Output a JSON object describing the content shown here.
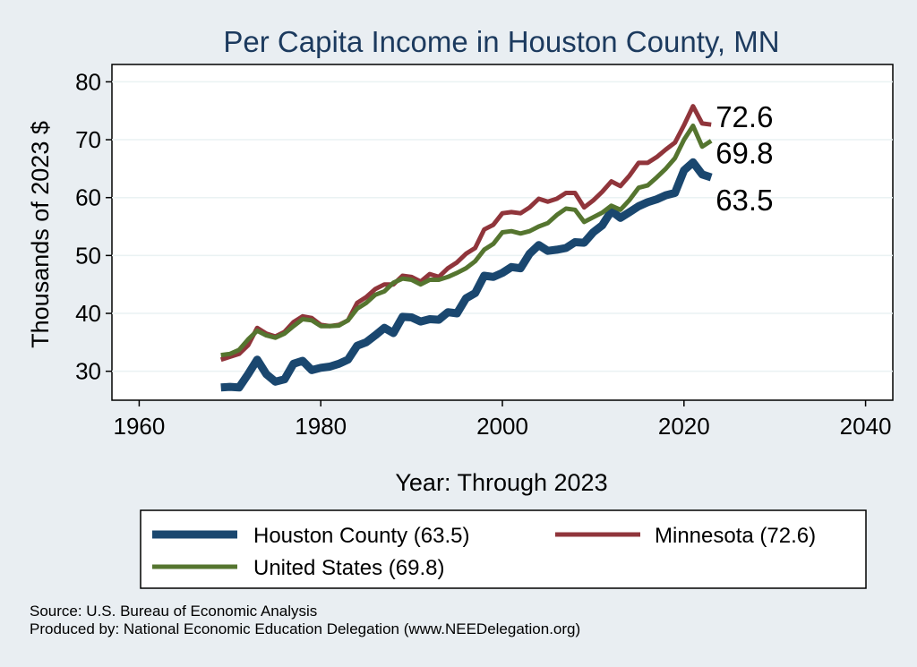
{
  "chart_data": {
    "type": "line",
    "title": "Per Capita Income in Houston County, MN",
    "xlabel": "Year: Through 2023",
    "ylabel": "Thousands of 2023 $",
    "xlim": [
      1957,
      2043
    ],
    "ylim": [
      25,
      83
    ],
    "x_ticks": [
      1960,
      1980,
      2000,
      2020,
      2040
    ],
    "y_ticks": [
      30,
      40,
      50,
      60,
      70,
      80
    ],
    "x_tick_labels": [
      "1960",
      "1980",
      "2000",
      "2020",
      "2040"
    ],
    "y_tick_labels": [
      "30",
      "40",
      "50",
      "60",
      "70",
      "80"
    ],
    "end_labels": [
      "72.6",
      "69.8",
      "63.5"
    ],
    "x": [
      1969,
      1970,
      1971,
      1972,
      1973,
      1974,
      1975,
      1976,
      1977,
      1978,
      1979,
      1980,
      1981,
      1982,
      1983,
      1984,
      1985,
      1986,
      1987,
      1988,
      1989,
      1990,
      1991,
      1992,
      1993,
      1994,
      1995,
      1996,
      1997,
      1998,
      1999,
      2000,
      2001,
      2002,
      2003,
      2004,
      2005,
      2006,
      2007,
      2008,
      2009,
      2010,
      2011,
      2012,
      2013,
      2014,
      2015,
      2016,
      2017,
      2018,
      2019,
      2020,
      2021,
      2022,
      2023
    ],
    "series": [
      {
        "name": "Houston County",
        "legend_label": "Houston County (63.5)",
        "color": "#1a476f",
        "end_value": "63.5",
        "values": [
          27.2,
          27.3,
          27.2,
          29.5,
          32.0,
          29.5,
          28.2,
          28.6,
          31.3,
          31.8,
          30.2,
          30.6,
          30.8,
          31.3,
          32.0,
          34.4,
          35.0,
          36.2,
          37.5,
          36.6,
          39.4,
          39.3,
          38.6,
          39.0,
          38.9,
          40.2,
          40.0,
          42.6,
          43.5,
          46.5,
          46.3,
          47.0,
          48.0,
          47.8,
          50.3,
          51.8,
          50.8,
          51.0,
          51.3,
          52.3,
          52.2,
          54.0,
          55.2,
          57.7,
          56.5,
          57.5,
          58.5,
          59.2,
          59.7,
          60.4,
          60.8,
          64.7,
          66.1,
          64.0,
          63.5
        ]
      },
      {
        "name": "Minnesota",
        "legend_label": "Minnesota (72.6)",
        "color": "#90353b",
        "end_value": "72.6",
        "values": [
          32.0,
          32.5,
          33.0,
          34.5,
          37.5,
          36.5,
          36.0,
          36.8,
          38.5,
          39.5,
          39.2,
          38.0,
          37.8,
          38.0,
          38.8,
          41.8,
          42.8,
          44.2,
          45.0,
          45.0,
          46.5,
          46.3,
          45.5,
          46.8,
          46.3,
          47.8,
          48.8,
          50.3,
          51.3,
          54.5,
          55.3,
          57.3,
          57.5,
          57.3,
          58.3,
          59.8,
          59.3,
          59.8,
          60.8,
          60.8,
          58.3,
          59.5,
          61.0,
          62.8,
          62.0,
          63.8,
          66.0,
          66.0,
          67.0,
          68.3,
          69.5,
          72.5,
          75.8,
          72.8,
          72.6
        ]
      },
      {
        "name": "United States",
        "legend_label": "United States (69.8)",
        "color": "#55752f",
        "end_value": "69.8",
        "values": [
          32.8,
          33.0,
          33.7,
          35.5,
          37.0,
          36.2,
          35.8,
          36.5,
          37.8,
          39.0,
          38.8,
          37.8,
          37.8,
          37.9,
          38.8,
          40.8,
          41.8,
          43.2,
          43.8,
          45.3,
          46.0,
          45.8,
          45.0,
          45.8,
          45.8,
          46.3,
          47.0,
          47.8,
          49.0,
          51.0,
          52.0,
          54.0,
          54.2,
          53.8,
          54.2,
          55.0,
          55.6,
          57.0,
          58.1,
          57.9,
          55.8,
          56.6,
          57.4,
          58.6,
          57.9,
          59.6,
          61.7,
          62.1,
          63.5,
          65.0,
          66.8,
          70.0,
          72.4,
          68.8,
          69.8
        ]
      }
    ],
    "legend_position": "bottom"
  },
  "source": {
    "line1": "Source: U.S. Bureau of Economic Analysis",
    "line2": "Produced by: National Economic Education Delegation (www.NEEDelegation.org)"
  }
}
